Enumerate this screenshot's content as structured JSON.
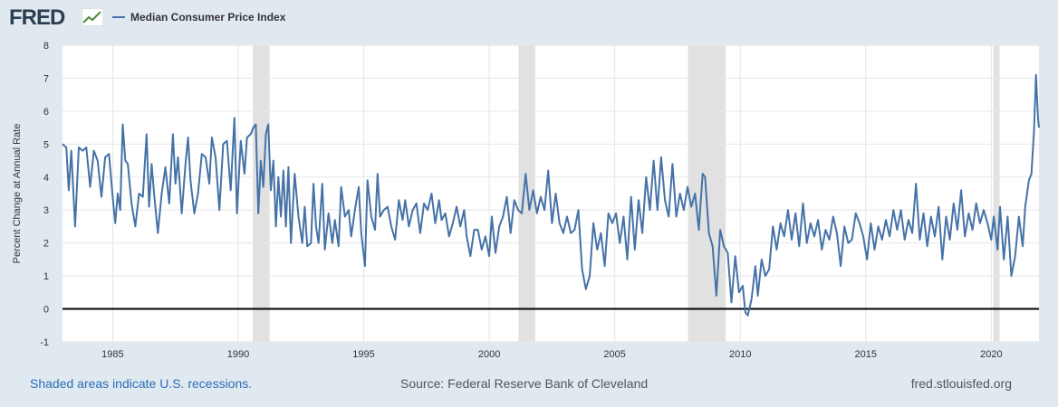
{
  "header": {
    "logo_text": "FRED",
    "logo_icon": "chart-trend-icon"
  },
  "footer": {
    "recession_note": "Shaded areas indicate U.S. recessions.",
    "source": "Source: Federal Reserve Bank of Cleveland",
    "site": "fred.stlouisfed.org"
  },
  "colors": {
    "line": "#4572a7",
    "recession": "#e1e1e1",
    "grid": "#e6e6e6",
    "zero_line": "#000000"
  },
  "chart_data": {
    "type": "line",
    "title": "",
    "xlabel": "",
    "ylabel": "Percent Change at Annual Rate",
    "xlim": [
      1983.0,
      2021.9
    ],
    "ylim": [
      -1,
      8
    ],
    "yticks": [
      -1,
      0,
      1,
      2,
      3,
      4,
      5,
      6,
      7,
      8
    ],
    "xticks": [
      1985,
      1990,
      1995,
      2000,
      2005,
      2010,
      2015,
      2020
    ],
    "grid": true,
    "recessions": [
      [
        1990.58,
        1991.25
      ],
      [
        2001.17,
        2001.83
      ],
      [
        2007.92,
        2009.42
      ],
      [
        2020.08,
        2020.33
      ]
    ],
    "series": [
      {
        "name": "Median Consumer Price Index",
        "points": [
          [
            1983.0,
            5.0
          ],
          [
            1983.15,
            4.9
          ],
          [
            1983.25,
            3.6
          ],
          [
            1983.35,
            4.8
          ],
          [
            1983.5,
            2.5
          ],
          [
            1983.65,
            4.9
          ],
          [
            1983.8,
            4.8
          ],
          [
            1983.95,
            4.9
          ],
          [
            1984.1,
            3.7
          ],
          [
            1984.25,
            4.8
          ],
          [
            1984.4,
            4.5
          ],
          [
            1984.55,
            3.4
          ],
          [
            1984.7,
            4.6
          ],
          [
            1984.85,
            4.7
          ],
          [
            1985.0,
            3.4
          ],
          [
            1985.1,
            2.6
          ],
          [
            1985.2,
            3.5
          ],
          [
            1985.3,
            3.0
          ],
          [
            1985.4,
            5.6
          ],
          [
            1985.5,
            4.5
          ],
          [
            1985.6,
            4.4
          ],
          [
            1985.75,
            3.2
          ],
          [
            1985.9,
            2.5
          ],
          [
            1986.05,
            3.5
          ],
          [
            1986.2,
            3.4
          ],
          [
            1986.35,
            5.3
          ],
          [
            1986.45,
            3.1
          ],
          [
            1986.55,
            4.4
          ],
          [
            1986.65,
            3.5
          ],
          [
            1986.8,
            2.3
          ],
          [
            1986.95,
            3.5
          ],
          [
            1987.1,
            4.3
          ],
          [
            1987.25,
            3.2
          ],
          [
            1987.4,
            5.3
          ],
          [
            1987.5,
            3.8
          ],
          [
            1987.6,
            4.6
          ],
          [
            1987.75,
            2.9
          ],
          [
            1987.9,
            4.4
          ],
          [
            1988.0,
            5.2
          ],
          [
            1988.1,
            3.9
          ],
          [
            1988.25,
            2.9
          ],
          [
            1988.4,
            3.5
          ],
          [
            1988.55,
            4.7
          ],
          [
            1988.7,
            4.6
          ],
          [
            1988.85,
            3.8
          ],
          [
            1988.95,
            5.2
          ],
          [
            1989.1,
            4.6
          ],
          [
            1989.25,
            3.0
          ],
          [
            1989.4,
            5.0
          ],
          [
            1989.55,
            5.1
          ],
          [
            1989.7,
            3.6
          ],
          [
            1989.85,
            5.8
          ],
          [
            1989.95,
            2.9
          ],
          [
            1990.1,
            5.1
          ],
          [
            1990.25,
            4.1
          ],
          [
            1990.35,
            5.2
          ],
          [
            1990.5,
            5.3
          ],
          [
            1990.6,
            5.5
          ],
          [
            1990.7,
            5.6
          ],
          [
            1990.8,
            2.9
          ],
          [
            1990.9,
            4.5
          ],
          [
            1991.0,
            3.7
          ],
          [
            1991.1,
            5.3
          ],
          [
            1991.2,
            5.6
          ],
          [
            1991.3,
            3.6
          ],
          [
            1991.4,
            4.5
          ],
          [
            1991.5,
            2.5
          ],
          [
            1991.6,
            4.0
          ],
          [
            1991.7,
            2.8
          ],
          [
            1991.8,
            4.2
          ],
          [
            1991.9,
            2.5
          ],
          [
            1992.0,
            4.3
          ],
          [
            1992.1,
            2.0
          ],
          [
            1992.25,
            4.1
          ],
          [
            1992.4,
            2.8
          ],
          [
            1992.55,
            2.0
          ],
          [
            1992.65,
            3.1
          ],
          [
            1992.75,
            1.9
          ],
          [
            1992.9,
            2.0
          ],
          [
            1993.0,
            3.8
          ],
          [
            1993.1,
            2.5
          ],
          [
            1993.2,
            2.0
          ],
          [
            1993.35,
            3.8
          ],
          [
            1993.45,
            1.8
          ],
          [
            1993.6,
            2.9
          ],
          [
            1993.75,
            2.0
          ],
          [
            1993.85,
            2.7
          ],
          [
            1994.0,
            1.9
          ],
          [
            1994.1,
            3.7
          ],
          [
            1994.25,
            2.8
          ],
          [
            1994.4,
            3.0
          ],
          [
            1994.5,
            2.2
          ],
          [
            1994.65,
            3.0
          ],
          [
            1994.8,
            3.7
          ],
          [
            1994.9,
            2.3
          ],
          [
            1995.05,
            1.3
          ],
          [
            1995.15,
            3.9
          ],
          [
            1995.3,
            2.8
          ],
          [
            1995.45,
            2.4
          ],
          [
            1995.55,
            4.1
          ],
          [
            1995.65,
            2.8
          ],
          [
            1995.8,
            3.0
          ],
          [
            1995.95,
            3.1
          ],
          [
            1996.1,
            2.5
          ],
          [
            1996.25,
            2.1
          ],
          [
            1996.4,
            3.3
          ],
          [
            1996.55,
            2.7
          ],
          [
            1996.65,
            3.3
          ],
          [
            1996.8,
            2.5
          ],
          [
            1996.95,
            3.0
          ],
          [
            1997.1,
            3.2
          ],
          [
            1997.25,
            2.3
          ],
          [
            1997.4,
            3.2
          ],
          [
            1997.55,
            3.0
          ],
          [
            1997.7,
            3.5
          ],
          [
            1997.85,
            2.6
          ],
          [
            1998.0,
            3.3
          ],
          [
            1998.1,
            2.7
          ],
          [
            1998.25,
            2.9
          ],
          [
            1998.4,
            2.2
          ],
          [
            1998.55,
            2.6
          ],
          [
            1998.7,
            3.1
          ],
          [
            1998.85,
            2.5
          ],
          [
            1999.0,
            3.0
          ],
          [
            1999.1,
            2.2
          ],
          [
            1999.25,
            1.6
          ],
          [
            1999.4,
            2.4
          ],
          [
            1999.55,
            2.4
          ],
          [
            1999.7,
            1.8
          ],
          [
            1999.85,
            2.2
          ],
          [
            2000.0,
            1.6
          ],
          [
            2000.1,
            2.8
          ],
          [
            2000.25,
            1.7
          ],
          [
            2000.4,
            2.5
          ],
          [
            2000.55,
            2.8
          ],
          [
            2000.7,
            3.4
          ],
          [
            2000.85,
            2.3
          ],
          [
            2001.0,
            3.3
          ],
          [
            2001.15,
            3.0
          ],
          [
            2001.3,
            2.9
          ],
          [
            2001.45,
            4.1
          ],
          [
            2001.6,
            3.0
          ],
          [
            2001.75,
            3.6
          ],
          [
            2001.9,
            2.9
          ],
          [
            2002.05,
            3.4
          ],
          [
            2002.2,
            3.0
          ],
          [
            2002.35,
            4.2
          ],
          [
            2002.5,
            2.6
          ],
          [
            2002.65,
            3.5
          ],
          [
            2002.8,
            2.6
          ],
          [
            2002.95,
            2.3
          ],
          [
            2003.1,
            2.8
          ],
          [
            2003.25,
            2.3
          ],
          [
            2003.4,
            2.4
          ],
          [
            2003.55,
            3.0
          ],
          [
            2003.7,
            1.2
          ],
          [
            2003.85,
            0.6
          ],
          [
            2004.0,
            1.0
          ],
          [
            2004.15,
            2.6
          ],
          [
            2004.3,
            1.8
          ],
          [
            2004.45,
            2.3
          ],
          [
            2004.6,
            1.3
          ],
          [
            2004.75,
            2.9
          ],
          [
            2004.9,
            2.6
          ],
          [
            2005.05,
            2.9
          ],
          [
            2005.2,
            2.0
          ],
          [
            2005.35,
            2.8
          ],
          [
            2005.5,
            1.5
          ],
          [
            2005.65,
            3.4
          ],
          [
            2005.8,
            1.8
          ],
          [
            2005.95,
            3.3
          ],
          [
            2006.1,
            2.3
          ],
          [
            2006.25,
            4.0
          ],
          [
            2006.4,
            3.0
          ],
          [
            2006.55,
            4.5
          ],
          [
            2006.7,
            3.0
          ],
          [
            2006.85,
            4.6
          ],
          [
            2007.0,
            3.3
          ],
          [
            2007.15,
            2.8
          ],
          [
            2007.3,
            4.4
          ],
          [
            2007.45,
            2.8
          ],
          [
            2007.6,
            3.5
          ],
          [
            2007.75,
            3.0
          ],
          [
            2007.9,
            3.7
          ],
          [
            2008.05,
            3.1
          ],
          [
            2008.2,
            3.5
          ],
          [
            2008.35,
            2.4
          ],
          [
            2008.5,
            4.1
          ],
          [
            2008.6,
            4.0
          ],
          [
            2008.75,
            2.3
          ],
          [
            2008.9,
            1.9
          ],
          [
            2009.05,
            0.4
          ],
          [
            2009.2,
            2.4
          ],
          [
            2009.35,
            1.9
          ],
          [
            2009.5,
            1.7
          ],
          [
            2009.65,
            0.2
          ],
          [
            2009.8,
            1.6
          ],
          [
            2009.95,
            0.5
          ],
          [
            2010.1,
            0.7
          ],
          [
            2010.2,
            -0.1
          ],
          [
            2010.3,
            -0.2
          ],
          [
            2010.45,
            0.3
          ],
          [
            2010.6,
            1.3
          ],
          [
            2010.7,
            0.4
          ],
          [
            2010.85,
            1.5
          ],
          [
            2011.0,
            1.0
          ],
          [
            2011.15,
            1.2
          ],
          [
            2011.3,
            2.5
          ],
          [
            2011.45,
            1.8
          ],
          [
            2011.6,
            2.6
          ],
          [
            2011.75,
            2.2
          ],
          [
            2011.9,
            3.0
          ],
          [
            2012.05,
            2.1
          ],
          [
            2012.2,
            2.9
          ],
          [
            2012.35,
            1.9
          ],
          [
            2012.5,
            3.2
          ],
          [
            2012.65,
            2.0
          ],
          [
            2012.8,
            2.6
          ],
          [
            2012.95,
            2.2
          ],
          [
            2013.1,
            2.7
          ],
          [
            2013.25,
            1.8
          ],
          [
            2013.4,
            2.4
          ],
          [
            2013.55,
            2.1
          ],
          [
            2013.7,
            2.8
          ],
          [
            2013.85,
            2.3
          ],
          [
            2014.0,
            1.3
          ],
          [
            2014.15,
            2.5
          ],
          [
            2014.3,
            2.0
          ],
          [
            2014.45,
            2.1
          ],
          [
            2014.6,
            2.9
          ],
          [
            2014.75,
            2.6
          ],
          [
            2014.9,
            2.2
          ],
          [
            2015.05,
            1.5
          ],
          [
            2015.2,
            2.6
          ],
          [
            2015.35,
            1.8
          ],
          [
            2015.5,
            2.5
          ],
          [
            2015.65,
            2.1
          ],
          [
            2015.8,
            2.7
          ],
          [
            2015.95,
            2.2
          ],
          [
            2016.1,
            3.0
          ],
          [
            2016.25,
            2.4
          ],
          [
            2016.4,
            3.0
          ],
          [
            2016.55,
            2.1
          ],
          [
            2016.7,
            2.7
          ],
          [
            2016.85,
            2.3
          ],
          [
            2017.0,
            3.8
          ],
          [
            2017.15,
            2.1
          ],
          [
            2017.3,
            2.9
          ],
          [
            2017.45,
            1.9
          ],
          [
            2017.6,
            2.8
          ],
          [
            2017.75,
            2.2
          ],
          [
            2017.9,
            3.1
          ],
          [
            2018.05,
            1.5
          ],
          [
            2018.2,
            2.8
          ],
          [
            2018.35,
            2.1
          ],
          [
            2018.5,
            3.2
          ],
          [
            2018.65,
            2.4
          ],
          [
            2018.8,
            3.6
          ],
          [
            2018.95,
            2.2
          ],
          [
            2019.1,
            2.9
          ],
          [
            2019.25,
            2.4
          ],
          [
            2019.4,
            3.2
          ],
          [
            2019.55,
            2.6
          ],
          [
            2019.7,
            3.0
          ],
          [
            2019.85,
            2.6
          ],
          [
            2020.0,
            2.1
          ],
          [
            2020.1,
            2.8
          ],
          [
            2020.25,
            1.8
          ],
          [
            2020.35,
            3.1
          ],
          [
            2020.5,
            1.5
          ],
          [
            2020.65,
            2.8
          ],
          [
            2020.8,
            1.0
          ],
          [
            2020.95,
            1.6
          ],
          [
            2021.1,
            2.8
          ],
          [
            2021.25,
            1.9
          ],
          [
            2021.35,
            3.1
          ],
          [
            2021.5,
            3.9
          ],
          [
            2021.6,
            4.1
          ],
          [
            2021.7,
            5.4
          ],
          [
            2021.78,
            7.1
          ],
          [
            2021.86,
            5.8
          ],
          [
            2021.9,
            5.5
          ]
        ]
      }
    ]
  }
}
